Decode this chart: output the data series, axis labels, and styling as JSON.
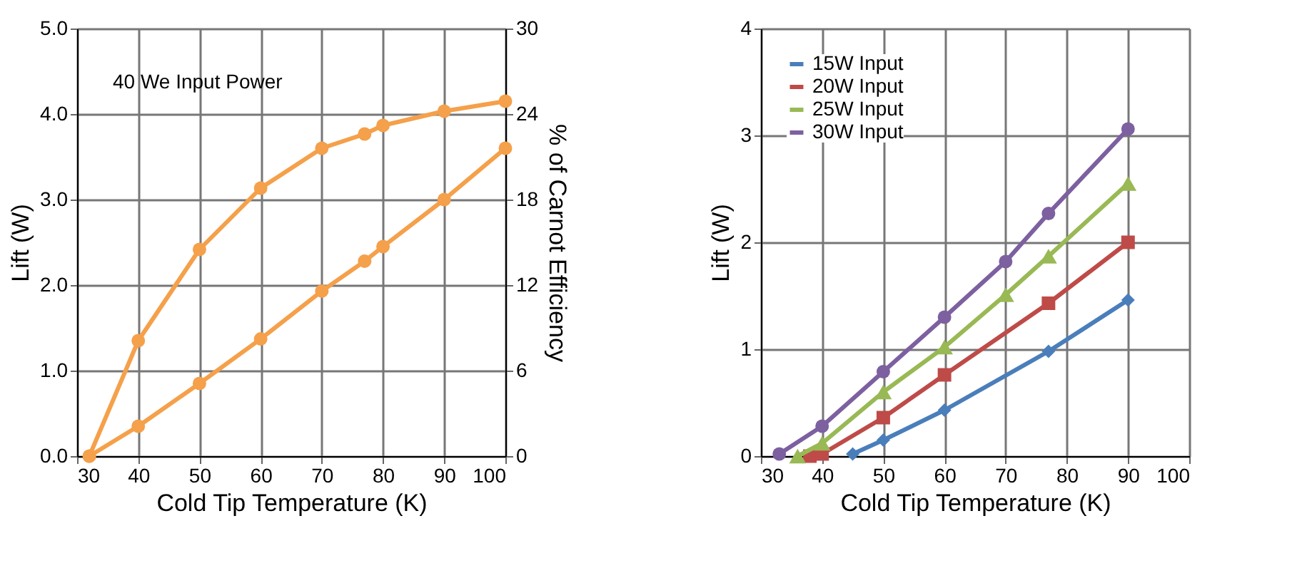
{
  "chart_data": [
    {
      "type": "line",
      "xlabel": "Cold Tip Temperature (K)",
      "ylabel": "Lift (W)",
      "y2label": "% of Carnot Efficiency",
      "annotations": [
        "40 We Input Power"
      ],
      "xlim": [
        30,
        100
      ],
      "xticks": [
        30,
        40,
        50,
        60,
        70,
        80,
        90,
        100
      ],
      "ylim": [
        0,
        5
      ],
      "yticks": [
        {
          "value": 0,
          "label": "0.0"
        },
        {
          "value": 1,
          "label": "1.0"
        },
        {
          "value": 2,
          "label": "2.0"
        },
        {
          "value": 3,
          "label": "3.0"
        },
        {
          "value": 4,
          "label": "4.0"
        },
        {
          "value": 5,
          "label": "5.0"
        }
      ],
      "y2lim": [
        0,
        30
      ],
      "y2ticks": [
        0,
        6,
        12,
        18,
        24,
        30
      ],
      "grid": true,
      "legend": false,
      "marker": "circle",
      "line_style": "solid",
      "series": [
        {
          "color": "#f5a04a",
          "x": [
            32,
            40,
            50,
            60,
            70,
            77,
            80,
            90,
            100
          ],
          "values": [
            0,
            0.35,
            0.85,
            1.37,
            1.93,
            2.28,
            2.45,
            3.0,
            3.6
          ]
        },
        {
          "color": "#f5a04a",
          "axis": "y2",
          "x": [
            32,
            40,
            50,
            60,
            70,
            77,
            80,
            90,
            100
          ],
          "values": [
            0,
            8.1,
            14.5,
            18.8,
            21.6,
            22.6,
            23.2,
            24.2,
            24.9
          ]
        }
      ]
    },
    {
      "type": "line",
      "xlabel": "Cold Tip Temperature (K)",
      "ylabel": "Lift (W)",
      "xlim": [
        30,
        100
      ],
      "xticks": [
        30,
        40,
        50,
        60,
        70,
        80,
        90,
        100
      ],
      "ylim": [
        0,
        4
      ],
      "yticks": [
        0,
        1,
        2,
        3,
        4
      ],
      "grid": true,
      "legend": "top left",
      "line_style": "solid",
      "series": [
        {
          "name": "15W Input",
          "color": "#4a7ebb",
          "marker": "diamond",
          "x": [
            45,
            50,
            60,
            77,
            90
          ],
          "values": [
            0.02,
            0.15,
            0.43,
            0.98,
            1.46
          ]
        },
        {
          "name": "20W Input",
          "color": "#be4b48",
          "marker": "square",
          "x": [
            38,
            40,
            50,
            60,
            77,
            90
          ],
          "values": [
            0,
            0.02,
            0.36,
            0.76,
            1.43,
            2.0
          ]
        },
        {
          "name": "25W Input",
          "color": "#98b954",
          "marker": "triangle",
          "x": [
            36,
            40,
            50,
            60,
            70,
            77,
            90
          ],
          "values": [
            0,
            0.12,
            0.6,
            1.02,
            1.51,
            1.87,
            2.55
          ]
        },
        {
          "name": "30W Input",
          "color": "#7d60a0",
          "marker": "circle",
          "x": [
            33,
            40,
            50,
            60,
            70,
            77,
            90
          ],
          "values": [
            0.02,
            0.28,
            0.79,
            1.3,
            1.82,
            2.27,
            3.06
          ]
        }
      ]
    }
  ]
}
